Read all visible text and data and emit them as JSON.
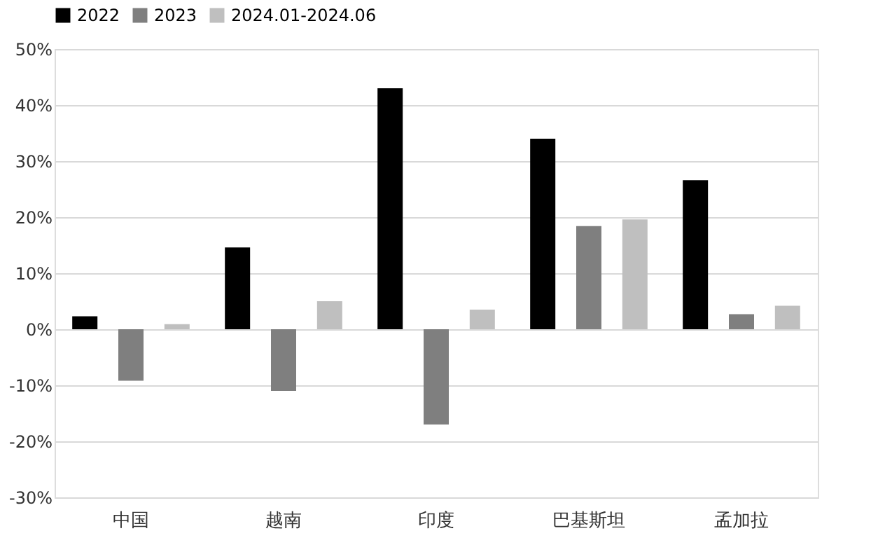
{
  "chart_data": {
    "type": "bar",
    "categories": [
      "中国",
      "越南",
      "印度",
      "巴基斯坦",
      "孟加拉"
    ],
    "series": [
      {
        "name": "2022",
        "color": "#000000",
        "values": [
          2.3,
          14.6,
          43.0,
          34.0,
          26.6
        ]
      },
      {
        "name": "2023",
        "color": "#7f7f7f",
        "values": [
          -9.2,
          -11.0,
          -17.0,
          18.4,
          2.7
        ]
      },
      {
        "name": "2024.01-2024.06",
        "color": "#bfbfbf",
        "values": [
          0.9,
          5.0,
          3.5,
          19.6,
          4.2
        ]
      }
    ],
    "ylim": [
      -30,
      50
    ],
    "yticks": [
      {
        "value": -30,
        "label": "-30%"
      },
      {
        "value": -20,
        "label": "-20%"
      },
      {
        "value": -10,
        "label": "-10%"
      },
      {
        "value": 0,
        "label": "0%"
      },
      {
        "value": 10,
        "label": "10%"
      },
      {
        "value": 20,
        "label": "20%"
      },
      {
        "value": 30,
        "label": "30%"
      },
      {
        "value": 40,
        "label": "40%"
      },
      {
        "value": 50,
        "label": "50%"
      }
    ],
    "grid": "y",
    "legend": "top"
  }
}
